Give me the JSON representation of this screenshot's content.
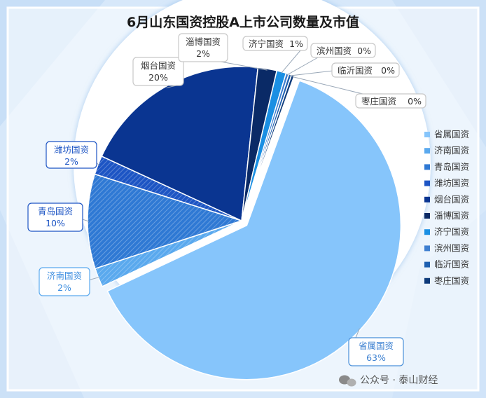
{
  "chart_data": {
    "type": "pie",
    "title": "6月山东国资控股A上市公司数量及市值",
    "slices": [
      {
        "name": "省属国资",
        "value": 63,
        "label": "63%",
        "color": "#86c5fb"
      },
      {
        "name": "济南国资",
        "value": 2,
        "label": "2%",
        "color": "#5aa9ee"
      },
      {
        "name": "青岛国资",
        "value": 10,
        "label": "10%",
        "color": "#2f79d4"
      },
      {
        "name": "潍坊国资",
        "value": 2,
        "label": "2%",
        "color": "#1d55c4"
      },
      {
        "name": "烟台国资",
        "value": 20,
        "label": "20%",
        "color": "#0a3591"
      },
      {
        "name": "淄博国资",
        "value": 2,
        "label": "2%",
        "color": "#0a2a66"
      },
      {
        "name": "济宁国资",
        "value": 1,
        "label": "1%",
        "color": "#1a8fe3"
      },
      {
        "name": "滨州国资",
        "value": 0.3,
        "label": "0%",
        "color": "#3f7fd0"
      },
      {
        "name": "临沂国资",
        "value": 0.3,
        "label": "0%",
        "color": "#1d5fb0"
      },
      {
        "name": "枣庄国资",
        "value": 0.3,
        "label": "0%",
        "color": "#0d3a7a"
      }
    ],
    "legend_position": "right"
  },
  "watermark": "公众号 · 泰山财经"
}
